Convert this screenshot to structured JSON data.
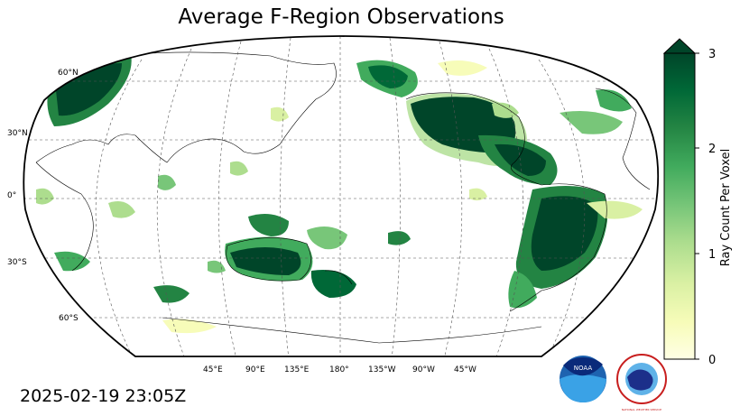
{
  "title": "Average F-Region Observations",
  "timestamp": "2025-02-19 23:05Z",
  "map": {
    "projection": "Robinson",
    "central_longitude": 180,
    "lat_labels": [
      "60°N",
      "30°N",
      "0°",
      "30°S",
      "60°S"
    ],
    "lon_labels": [
      "45°E",
      "90°E",
      "135°E",
      "180°",
      "135°W",
      "90°W",
      "45°W"
    ]
  },
  "colorbar": {
    "label": "Ray Count Per Voxel",
    "ticks": [
      "0",
      "1",
      "2",
      "3"
    ],
    "min": 0,
    "max": 3,
    "extend": "max",
    "colormap": "YlGn",
    "colors": [
      "#ffffe5",
      "#f7fcb9",
      "#d9f0a3",
      "#addd8e",
      "#78c679",
      "#41ab5d",
      "#238443",
      "#006837",
      "#004529"
    ]
  },
  "logos": {
    "noaa": "NOAA",
    "nws": "NATIONAL WEATHER SERVICE"
  }
}
